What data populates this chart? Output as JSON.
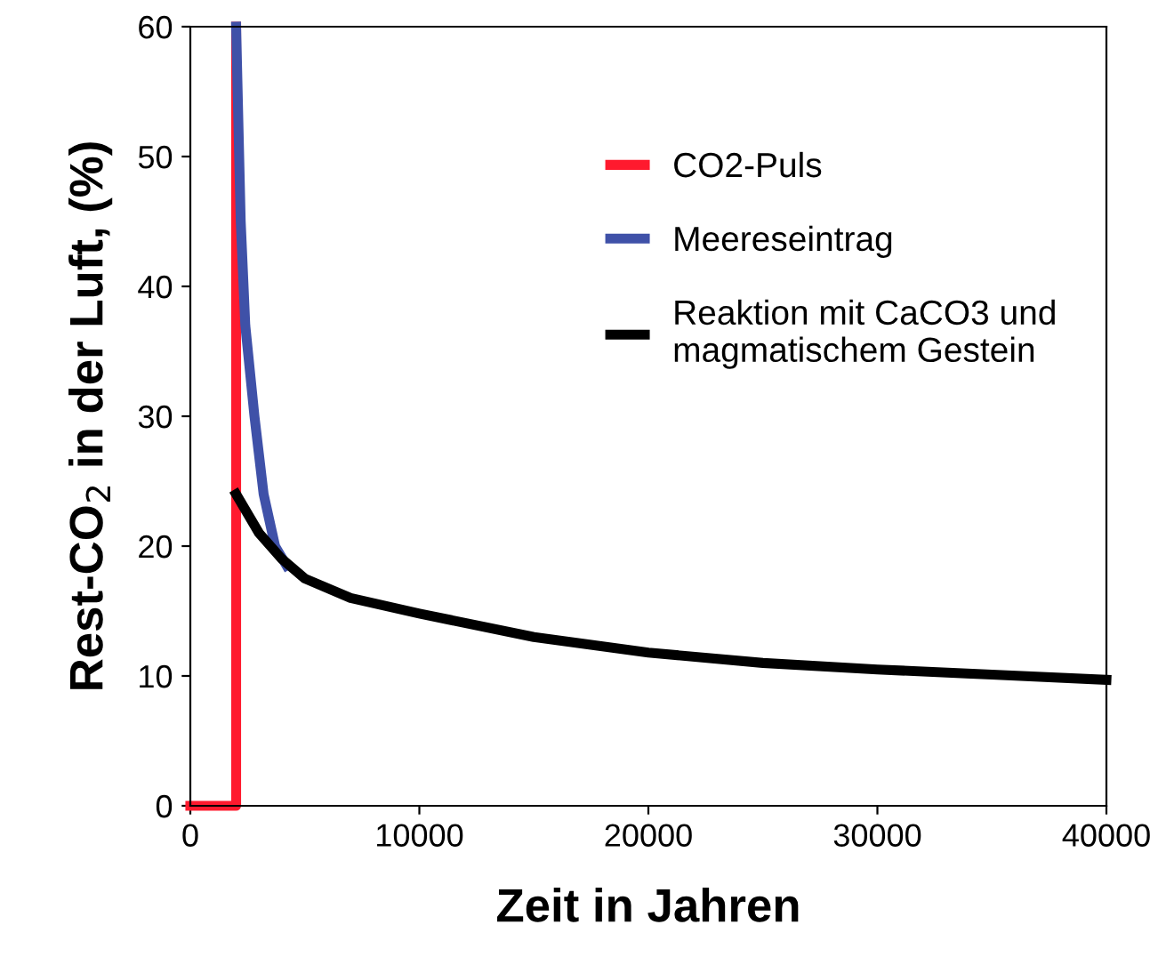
{
  "chart_data": {
    "type": "line",
    "xlabel": "Zeit in Jahren",
    "ylabel": "Rest-CO$_{2}$ in der Luft, (%)",
    "series": [
      {
        "name": "CO2-Puls",
        "color": "#ff1a2e",
        "x": [
          0,
          2000,
          2000
        ],
        "values": [
          0,
          0,
          60
        ]
      },
      {
        "name": "Meereseintrag",
        "color": "#3f51a8",
        "x": [
          2000,
          2200,
          2400,
          2800,
          3200,
          3700,
          4200
        ],
        "values": [
          60,
          45,
          37,
          30,
          24,
          20,
          18.5
        ]
      },
      {
        "name": "Reaktion mit CaCO3 und\nmagmatischem Gestein",
        "color": "#000000",
        "x": [
          2000,
          3000,
          4000,
          5000,
          7000,
          10000,
          15000,
          20000,
          25000,
          30000,
          35000,
          40000
        ],
        "values": [
          24,
          21,
          19,
          17.5,
          16,
          14.8,
          13,
          11.8,
          11,
          10.5,
          10.1,
          9.7
        ]
      }
    ],
    "xlim": [
      0,
      40000
    ],
    "ylim": [
      0,
      60
    ],
    "xticks": [
      0,
      10000,
      20000,
      30000,
      40000
    ],
    "yticks": [
      0,
      10,
      20,
      30,
      40,
      50,
      60
    ],
    "grid": false,
    "legend": "center right",
    "marker": "none",
    "line_style": "solid"
  }
}
